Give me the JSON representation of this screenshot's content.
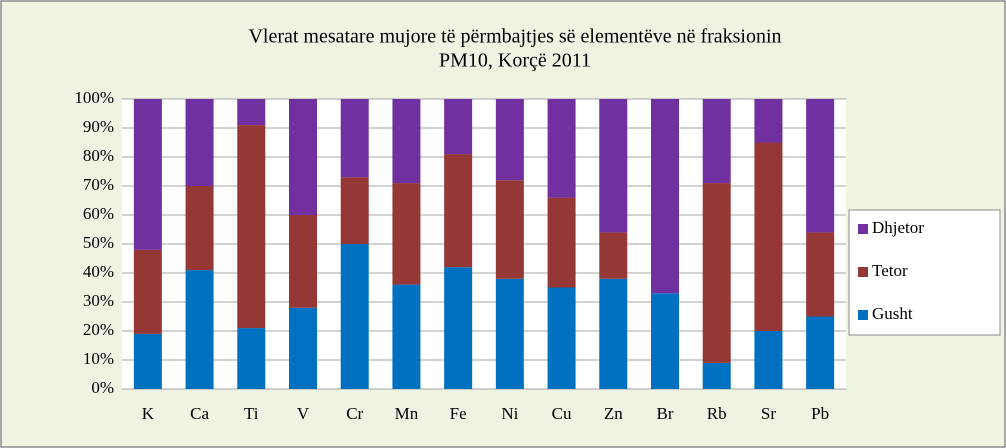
{
  "chart_data": {
    "type": "stacked_bar_percent",
    "title": [
      "Vlerat mesatare mujore  të përmbajtjes  së  elementëve në fraksionin",
      "PM10, Korçë 2011"
    ],
    "categories": [
      "K",
      "Ca",
      "Ti",
      "V",
      "Cr",
      "Mn",
      "Fe",
      "Ni",
      "Cu",
      "Zn",
      "Br",
      "Rb",
      "Sr",
      "Pb"
    ],
    "series": [
      {
        "name": "Gusht",
        "color": "#0070c0",
        "values": [
          19,
          41,
          21,
          28,
          50,
          36,
          42,
          38,
          35,
          38,
          33,
          9,
          20,
          25
        ]
      },
      {
        "name": "Tetor",
        "color": "#953735",
        "values": [
          29,
          29,
          70,
          32,
          23,
          35,
          39,
          34,
          31,
          16,
          0,
          62,
          65,
          29
        ]
      },
      {
        "name": "Dhjetor",
        "color": "#7030a0",
        "values": [
          52,
          30,
          9,
          40,
          27,
          29,
          19,
          28,
          34,
          46,
          67,
          29,
          15,
          46
        ]
      }
    ],
    "ylim": [
      0,
      100
    ],
    "yticks": [
      {
        "value": 0,
        "label": "0%"
      },
      {
        "value": 10,
        "label": "10%"
      },
      {
        "value": 20,
        "label": "20%"
      },
      {
        "value": 30,
        "label": "30%"
      },
      {
        "value": 40,
        "label": "40%"
      },
      {
        "value": 50,
        "label": "50%"
      },
      {
        "value": 60,
        "label": "60%"
      },
      {
        "value": 70,
        "label": "70%"
      },
      {
        "value": 80,
        "label": "80%"
      },
      {
        "value": 90,
        "label": "90%"
      },
      {
        "value": 100,
        "label": "100%"
      }
    ],
    "grid": true,
    "legend": "right"
  }
}
